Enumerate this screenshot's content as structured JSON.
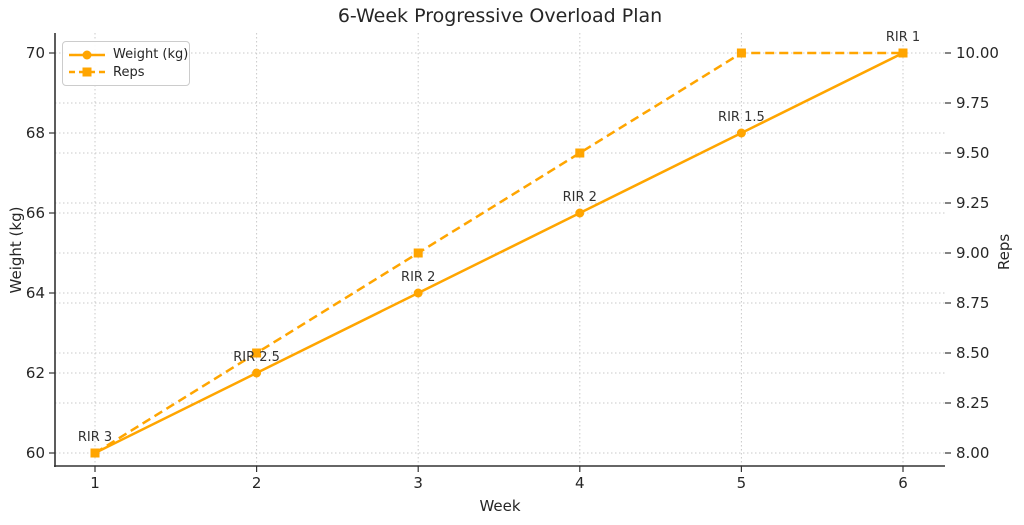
{
  "chart_data": {
    "type": "line",
    "title": "6-Week Progressive Overload Plan",
    "xlabel": "Week",
    "ylabel_left": "Weight (kg)",
    "ylabel_right": "Reps",
    "x": [
      1,
      2,
      3,
      4,
      5,
      6
    ],
    "series": [
      {
        "name": "Weight (kg)",
        "axis": "left",
        "values": [
          60,
          62,
          64,
          66,
          68,
          70
        ],
        "line": "solid",
        "marker": "circle",
        "color": "#FFA500"
      },
      {
        "name": "Reps",
        "axis": "right",
        "values": [
          8,
          8.5,
          9,
          9.5,
          10,
          10
        ],
        "line": "dashed",
        "marker": "square",
        "color": "#FFA500"
      }
    ],
    "annotations": [
      {
        "x": 1,
        "label": "RIR 3"
      },
      {
        "x": 2,
        "label": "RIR 2.5"
      },
      {
        "x": 3,
        "label": "RIR 2"
      },
      {
        "x": 4,
        "label": "RIR 2"
      },
      {
        "x": 5,
        "label": "RIR 1.5"
      },
      {
        "x": 6,
        "label": "RIR 1"
      }
    ],
    "axes": {
      "x": {
        "label": "Week",
        "ticks": [
          1,
          2,
          3,
          4,
          5,
          6
        ],
        "labels": [
          "1",
          "2",
          "3",
          "4",
          "5",
          "6"
        ]
      },
      "left": {
        "label": "Weight (kg)",
        "ticks": [
          60,
          62,
          64,
          66,
          68,
          70
        ],
        "labels": [
          "60",
          "62",
          "64",
          "66",
          "68",
          "70"
        ],
        "lim": [
          60,
          70
        ]
      },
      "right": {
        "label": "Reps",
        "ticks": [
          8,
          8.25,
          8.5,
          8.75,
          9,
          9.25,
          9.5,
          9.75,
          10
        ],
        "labels": [
          "8.00",
          "8.25",
          "8.50",
          "8.75",
          "9.00",
          "9.25",
          "9.50",
          "9.75",
          "10.00"
        ],
        "lim": [
          8,
          10
        ]
      }
    },
    "grid": {
      "on": true,
      "style": "dotted"
    },
    "legend": {
      "position": "upper left",
      "items": [
        {
          "label": "Weight (kg)",
          "marker": "circle",
          "line": "solid"
        },
        {
          "label": "Reps",
          "marker": "square",
          "line": "dashed"
        }
      ]
    }
  },
  "colors": {
    "series": "#FFA500",
    "text": "#262626",
    "annotation_text": "#333333",
    "grid": "#c9c9c9",
    "spine": "#333333",
    "legend_border": "#cccccc",
    "background": "#ffffff"
  }
}
